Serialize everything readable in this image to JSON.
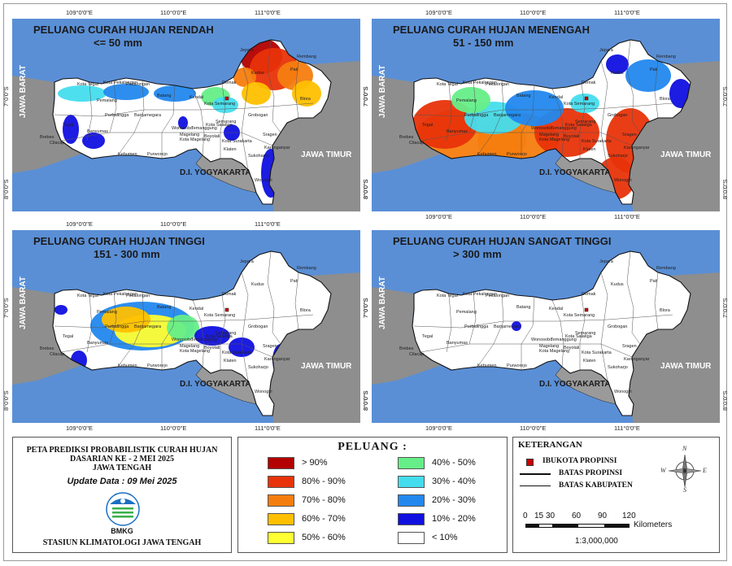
{
  "maps": [
    {
      "title_line1": "PELUANG CURAH HUJAN RENDAH",
      "title_line2": "<= 50 mm"
    },
    {
      "title_line1": "PELUANG CURAH HUJAN MENENGAH",
      "title_line2": "51 - 150 mm"
    },
    {
      "title_line1": "PELUANG CURAH HUJAN TINGGI",
      "title_line2": "151 - 300 mm"
    },
    {
      "title_line1": "PELUANG CURAH HUJAN SANGAT TINGGI",
      "title_line2": "> 300 mm"
    }
  ],
  "regions": {
    "west": "JAWA BARAT",
    "east": "JAWA TIMUR",
    "south": "D.I. YOGYAKARTA"
  },
  "coords": {
    "lon": [
      "109°0'0\"E",
      "110°0'0\"E",
      "111°0'0\"E"
    ],
    "lat": [
      "7°0'0\"S",
      "8°0'0\"S"
    ]
  },
  "kabupaten": [
    "Brebes",
    "Tegal",
    "Kota Tegal",
    "Pemalang",
    "Kota Pekalongan",
    "Pekalongan",
    "Batang",
    "Kendal",
    "Kota Semarang",
    "Demak",
    "Kudus",
    "Jepara",
    "Pati",
    "Rembang",
    "Blora",
    "Grobogan",
    "Semarang",
    "Temanggung",
    "Wonosobo",
    "Banjarnegara",
    "Purbalingga",
    "Banyumas",
    "Cilacap",
    "Kebumen",
    "Purworejo",
    "Magelang",
    "Kota Magelang",
    "Boyolali",
    "Kota Salatiga",
    "Sragen",
    "Karanganyar",
    "Klaten",
    "Sukoharjo",
    "Wonogiri",
    "Kota Surakarta"
  ],
  "info": {
    "title_line1": "PETA PREDIKSI PROBABILISTIK CURAH HUJAN",
    "title_line2": "DASARIAN KE - 2 MEI 2025",
    "title_line3": "JAWA TENGAH",
    "update": "Update Data : 09 Mei 2025",
    "logo_text": "BMKG",
    "station": "STASIUN KLIMATOLOGI JAWA TENGAH"
  },
  "legend": {
    "title": "PELUANG :",
    "items": [
      {
        "label": "> 90%",
        "color": "#b30000"
      },
      {
        "label": "80% - 90%",
        "color": "#e8330a"
      },
      {
        "label": "70% - 80%",
        "color": "#f57d0f"
      },
      {
        "label": "60% - 70%",
        "color": "#ffc000"
      },
      {
        "label": "50% - 60%",
        "color": "#ffff33"
      },
      {
        "label": "40% - 50%",
        "color": "#66ee88"
      },
      {
        "label": "30% - 40%",
        "color": "#44ddee"
      },
      {
        "label": "20% - 30%",
        "color": "#2288ee"
      },
      {
        "label": "10% - 20%",
        "color": "#1010e0"
      },
      {
        "label": "< 10%",
        "color": "#ffffff"
      }
    ]
  },
  "keterangan": {
    "title": "KETERANGAN",
    "items": [
      "IBUKOTA PROPINSI",
      "BATAS PROPINSI",
      "BATAS KABUPATEN"
    ]
  },
  "scale": {
    "ticks": [
      "0",
      "15",
      "30",
      "60",
      "90",
      "120"
    ],
    "unit": "Kilometers",
    "ratio": "1:3,000,000"
  },
  "compass": {
    "n": "N",
    "s": "S",
    "e": "E",
    "w": "W"
  }
}
